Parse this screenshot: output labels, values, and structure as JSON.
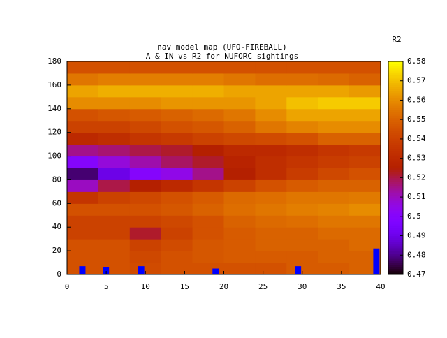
{
  "chart_data": {
    "type": "heatmap",
    "title": "nav model map (UFO-FIREBALL)",
    "subtitle": "A & IN vs R2 for NUFORC sightings",
    "colorbar_label": "R2",
    "palette": "rgbformulae-7-5-15",
    "xlim": [
      0,
      40
    ],
    "xticks": [
      0,
      5,
      10,
      15,
      20,
      25,
      30,
      35,
      40
    ],
    "ylim": [
      0,
      180
    ],
    "yticks": [
      0,
      20,
      40,
      60,
      80,
      100,
      120,
      140,
      160,
      180
    ],
    "clim": [
      0.47,
      0.58
    ],
    "cticks": [
      0.47,
      0.48,
      0.49,
      0.5,
      0.51,
      0.52,
      0.53,
      0.54,
      0.55,
      0.56,
      0.57,
      0.58
    ],
    "xbins": [
      0,
      4,
      8,
      12,
      16,
      20,
      24,
      28,
      32,
      36,
      40
    ],
    "ybins": [
      0,
      10,
      20,
      30,
      40,
      50,
      60,
      70,
      80,
      90,
      100,
      110,
      120,
      130,
      140,
      150,
      160,
      170,
      180
    ],
    "z": [
      [
        0.545,
        0.545,
        0.543,
        0.545,
        0.545,
        0.545,
        0.545,
        0.548,
        0.548,
        0.55
      ],
      [
        0.545,
        0.545,
        0.542,
        0.545,
        0.547,
        0.548,
        0.548,
        0.548,
        0.55,
        0.55
      ],
      [
        0.545,
        0.545,
        0.54,
        0.543,
        0.547,
        0.548,
        0.55,
        0.55,
        0.55,
        0.552
      ],
      [
        0.54,
        0.54,
        0.522,
        0.54,
        0.545,
        0.548,
        0.55,
        0.55,
        0.552,
        0.552
      ],
      [
        0.54,
        0.54,
        0.54,
        0.542,
        0.545,
        0.55,
        0.552,
        0.553,
        0.555,
        0.555
      ],
      [
        0.545,
        0.545,
        0.545,
        0.547,
        0.55,
        0.553,
        0.555,
        0.557,
        0.558,
        0.56
      ],
      [
        0.535,
        0.54,
        0.542,
        0.545,
        0.548,
        0.552,
        0.553,
        0.555,
        0.555,
        0.556
      ],
      [
        0.51,
        0.52,
        0.525,
        0.53,
        0.535,
        0.54,
        0.545,
        0.548,
        0.55,
        0.55
      ],
      [
        0.478,
        0.49,
        0.5,
        0.505,
        0.515,
        0.525,
        0.532,
        0.538,
        0.542,
        0.545
      ],
      [
        0.5,
        0.507,
        0.512,
        0.518,
        0.522,
        0.527,
        0.532,
        0.535,
        0.538,
        0.54
      ],
      [
        0.515,
        0.517,
        0.52,
        0.522,
        0.525,
        0.53,
        0.53,
        0.532,
        0.535,
        0.537
      ],
      [
        0.53,
        0.532,
        0.535,
        0.537,
        0.54,
        0.542,
        0.543,
        0.545,
        0.55,
        0.55
      ],
      [
        0.54,
        0.54,
        0.542,
        0.545,
        0.547,
        0.55,
        0.555,
        0.558,
        0.56,
        0.56
      ],
      [
        0.545,
        0.547,
        0.548,
        0.55,
        0.552,
        0.555,
        0.56,
        0.565,
        0.565,
        0.565
      ],
      [
        0.56,
        0.56,
        0.56,
        0.562,
        0.562,
        0.562,
        0.565,
        0.57,
        0.572,
        0.572
      ],
      [
        0.565,
        0.567,
        0.567,
        0.567,
        0.567,
        0.565,
        0.565,
        0.565,
        0.565,
        0.563
      ],
      [
        0.555,
        0.557,
        0.557,
        0.557,
        0.557,
        0.555,
        0.553,
        0.553,
        0.552,
        0.55
      ],
      [
        0.545,
        0.545,
        0.545,
        0.545,
        0.545,
        0.545,
        0.545,
        0.545,
        0.545,
        0.545
      ]
    ],
    "points": {
      "color": "#0000ff",
      "x": [
        2,
        5,
        9.5,
        19,
        29.5,
        39.5
      ],
      "y": [
        7,
        6,
        7,
        5,
        7,
        22
      ]
    }
  }
}
